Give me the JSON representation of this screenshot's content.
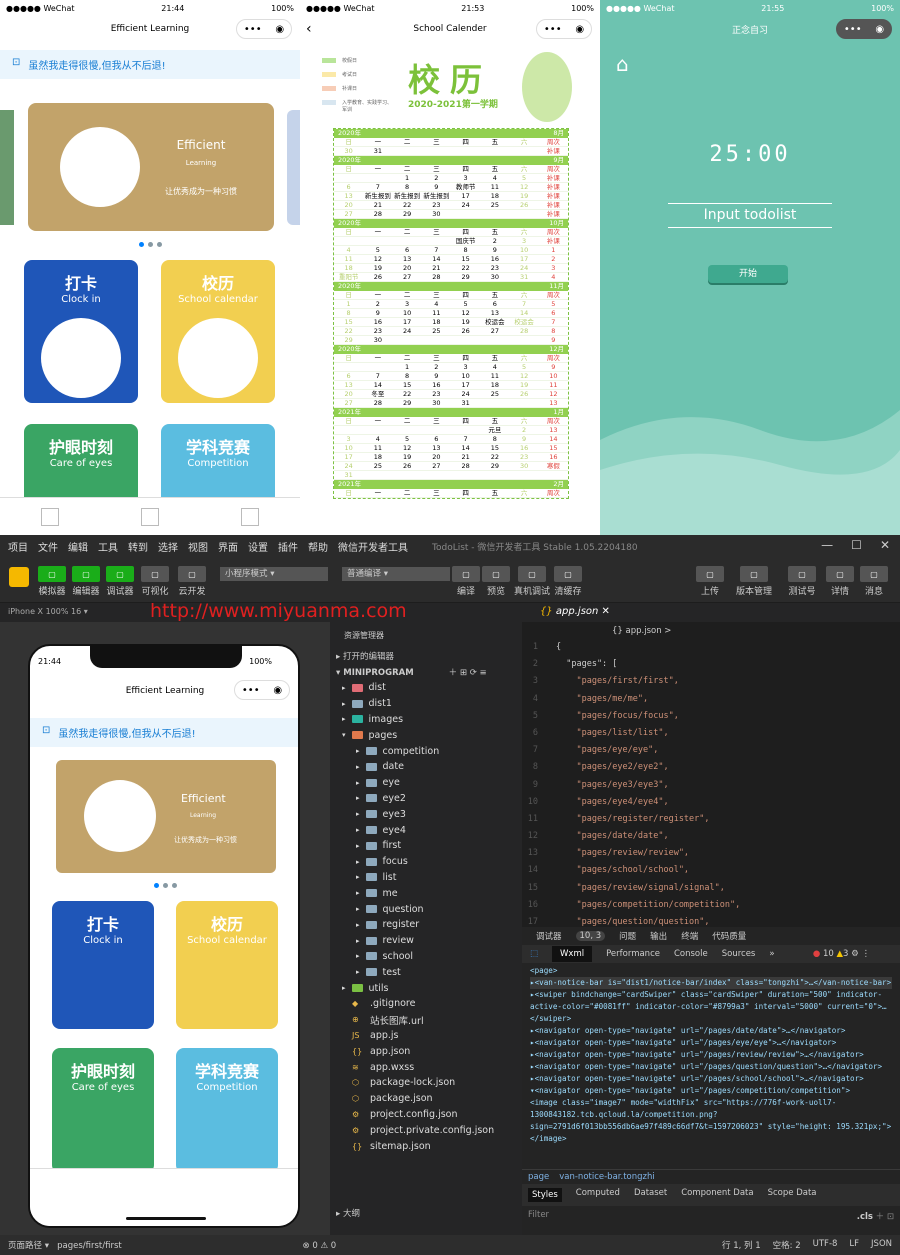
{
  "phone1": {
    "status": {
      "carrier": "●●●●● WeChat",
      "time": "21:44",
      "battery": "100%"
    },
    "title": "Efficient Learning",
    "notice": "虽然我走得很慢,但我从不后退!",
    "banner": {
      "title": "Efficient",
      "subtitle": "Learning",
      "slogan": "让优秀成为一种习惯"
    },
    "cards": [
      {
        "title": "打卡",
        "subtitle": "Clock in",
        "color": "#1f56b8"
      },
      {
        "title": "校历",
        "subtitle": "School calendar",
        "color": "#f2cf50"
      },
      {
        "title": "护眼时刻",
        "subtitle": "Care of eyes",
        "color": "#3aa564"
      },
      {
        "title": "学科竞赛",
        "subtitle": "Competition",
        "color": "#5bbde0"
      }
    ]
  },
  "phone2": {
    "status": {
      "carrier": "●●●●● WeChat",
      "time": "21:53",
      "battery": "100%"
    },
    "title": "School Calender",
    "heading": "校历",
    "term": "2020-2021第一学期",
    "legend": [
      "校假日",
      "考试日",
      "补课日",
      "入学教育、实践学习、军训"
    ],
    "weekdays": [
      "日",
      "一",
      "二",
      "三",
      "四",
      "五",
      "六",
      "周次"
    ],
    "months": [
      {
        "year": "2020年",
        "month": "8月",
        "rows": [
          [
            "30",
            "31",
            "",
            "",
            "",
            "",
            "",
            "补课"
          ]
        ]
      },
      {
        "year": "2020年",
        "month": "9月",
        "rows": [
          [
            "",
            "",
            "1",
            "2",
            "3",
            "4",
            "5",
            "补课"
          ],
          [
            "6",
            "7",
            "8",
            "9",
            "教师节",
            "11",
            "12",
            "补课"
          ],
          [
            "13",
            "新生报到",
            "新生报到",
            "新生报到",
            "17",
            "18",
            "19",
            "补课"
          ],
          [
            "20",
            "21",
            "22",
            "23",
            "24",
            "25",
            "26",
            "补课"
          ],
          [
            "27",
            "28",
            "29",
            "30",
            "",
            "",
            "",
            "补课"
          ]
        ]
      },
      {
        "year": "2020年",
        "month": "10月",
        "rows": [
          [
            "",
            "",
            "",
            "",
            "国庆节",
            "2",
            "3",
            "补课"
          ],
          [
            "4",
            "5",
            "6",
            "7",
            "8",
            "9",
            "10",
            "1"
          ],
          [
            "11",
            "12",
            "13",
            "14",
            "15",
            "16",
            "17",
            "2"
          ],
          [
            "18",
            "19",
            "20",
            "21",
            "22",
            "23",
            "24",
            "3"
          ],
          [
            "重阳节",
            "26",
            "27",
            "28",
            "29",
            "30",
            "31",
            "4"
          ]
        ]
      },
      {
        "year": "2020年",
        "month": "11月",
        "rows": [
          [
            "1",
            "2",
            "3",
            "4",
            "5",
            "6",
            "7",
            "5"
          ],
          [
            "8",
            "9",
            "10",
            "11",
            "12",
            "13",
            "14",
            "6"
          ],
          [
            "15",
            "16",
            "17",
            "18",
            "19",
            "校运会",
            "校运会",
            "7"
          ],
          [
            "22",
            "23",
            "24",
            "25",
            "26",
            "27",
            "28",
            "8"
          ],
          [
            "29",
            "30",
            "",
            "",
            "",
            "",
            "",
            "9"
          ]
        ]
      },
      {
        "year": "2020年",
        "month": "12月",
        "rows": [
          [
            "",
            "",
            "1",
            "2",
            "3",
            "4",
            "5",
            "9"
          ],
          [
            "6",
            "7",
            "8",
            "9",
            "10",
            "11",
            "12",
            "10"
          ],
          [
            "13",
            "14",
            "15",
            "16",
            "17",
            "18",
            "19",
            "11"
          ],
          [
            "20",
            "冬至",
            "22",
            "23",
            "24",
            "25",
            "26",
            "12"
          ],
          [
            "27",
            "28",
            "29",
            "30",
            "31",
            "",
            "",
            "13"
          ]
        ]
      },
      {
        "year": "2021年",
        "month": "1月",
        "rows": [
          [
            "",
            "",
            "",
            "",
            "",
            "元旦",
            "2",
            "13"
          ],
          [
            "3",
            "4",
            "5",
            "6",
            "7",
            "8",
            "9",
            "14"
          ],
          [
            "10",
            "11",
            "12",
            "13",
            "14",
            "15",
            "16",
            "15"
          ],
          [
            "17",
            "18",
            "19",
            "20",
            "21",
            "22",
            "23",
            "16"
          ],
          [
            "24",
            "25",
            "26",
            "27",
            "28",
            "29",
            "30",
            "寒假"
          ],
          [
            "31",
            "",
            "",
            "",
            "",
            "",
            "",
            ""
          ]
        ]
      },
      {
        "year": "2021年",
        "month": "2月",
        "rows": []
      }
    ]
  },
  "phone3": {
    "status": {
      "carrier": "●●●●● WeChat",
      "time": "21:55",
      "battery": "100%"
    },
    "title": "正念自习",
    "timer": "25:00",
    "input_placeholder": "Input todolist",
    "start": "开始"
  },
  "ide": {
    "menu": [
      "项目",
      "文件",
      "编辑",
      "工具",
      "转到",
      "选择",
      "视图",
      "界面",
      "设置",
      "插件",
      "帮助",
      "微信开发者工具"
    ],
    "window_title": "TodoList - 微信开发者工具 Stable 1.05.2204180",
    "toolbar_left": [
      "模拟器",
      "编辑器",
      "调试器",
      "可视化",
      "云开发"
    ],
    "mode": "小程序模式",
    "compile": "普通编译",
    "toolbar_mid": [
      "编译",
      "预览",
      "真机调试",
      "清缓存"
    ],
    "toolbar_right": [
      "上传",
      "版本管理",
      "测试号",
      "详情",
      "消息"
    ],
    "device": "iPhone X 100% 16 ▾",
    "watermark": "http://www.miyuanma.com",
    "explorer_title": "资源管理器",
    "open_editors": "打开的编辑器",
    "project": "MINIPROGRAM",
    "tree": [
      {
        "n": "dist",
        "d": 0,
        "c": "#e06c75"
      },
      {
        "n": "dist1",
        "d": 0
      },
      {
        "n": "images",
        "d": 0,
        "c": "#2bb3a0"
      },
      {
        "n": "pages",
        "d": 0,
        "c": "#e0794c",
        "open": true
      },
      {
        "n": "competition",
        "d": 1
      },
      {
        "n": "date",
        "d": 1
      },
      {
        "n": "eye",
        "d": 1
      },
      {
        "n": "eye2",
        "d": 1
      },
      {
        "n": "eye3",
        "d": 1
      },
      {
        "n": "eye4",
        "d": 1
      },
      {
        "n": "first",
        "d": 1
      },
      {
        "n": "focus",
        "d": 1
      },
      {
        "n": "list",
        "d": 1
      },
      {
        "n": "me",
        "d": 1
      },
      {
        "n": "question",
        "d": 1
      },
      {
        "n": "register",
        "d": 1
      },
      {
        "n": "review",
        "d": 1
      },
      {
        "n": "school",
        "d": 1
      },
      {
        "n": "test",
        "d": 1
      },
      {
        "n": "utils",
        "d": 0,
        "c": "#7bc043"
      },
      {
        "n": ".gitignore",
        "f": "◆"
      },
      {
        "n": "站长图库.url",
        "f": "⊕"
      },
      {
        "n": "app.js",
        "f": "JS"
      },
      {
        "n": "app.json",
        "f": "{}"
      },
      {
        "n": "app.wxss",
        "f": "≋"
      },
      {
        "n": "package-lock.json",
        "f": "⬡"
      },
      {
        "n": "package.json",
        "f": "⬡"
      },
      {
        "n": "project.config.json",
        "f": "⚙"
      },
      {
        "n": "project.private.config.json",
        "f": "⚙"
      },
      {
        "n": "sitemap.json",
        "f": "{}"
      }
    ],
    "outline": "大纲",
    "problems": "⊗ 0 ⚠ 0",
    "tab": "app.json",
    "breadcrumb": "{} app.json >",
    "code": [
      "{",
      "  \"pages\": [",
      "    \"pages/first/first\",",
      "    \"pages/me/me\",",
      "    \"pages/focus/focus\",",
      "    \"pages/list/list\",",
      "    \"pages/eye/eye\",",
      "    \"pages/eye2/eye2\",",
      "    \"pages/eye3/eye3\",",
      "    \"pages/eye4/eye4\",",
      "    \"pages/register/register\",",
      "    \"pages/date/date\",",
      "    \"pages/review/review\",",
      "    \"pages/school/school\",",
      "    \"pages/review/signal/signal\",",
      "    \"pages/competition/competition\",",
      "    \"pages/question/question\","
    ],
    "debug_tabs": [
      "调试器",
      "10, 3",
      "问题",
      "输出",
      "终端",
      "代码质量"
    ],
    "dev_tabs": [
      "Wxml",
      "Performance",
      "Console",
      "Sources",
      "»"
    ],
    "errors": "10",
    "warnings": "3",
    "wxml": [
      "<page>",
      "▸<van-notice-bar is=\"dist1/notice-bar/index\" class=\"tongzhi\">…</van-notice-bar>",
      "▸<swiper bindchange=\"cardSwiper\" class=\"cardSwiper\" duration=\"500\" indicator-active-color=\"#0081ff\" indicator-color=\"#8799a3\" interval=\"5000\" current=\"0\">…</swiper>",
      "▸<navigator open-type=\"navigate\" url=\"/pages/date/date\">…</navigator>",
      "▸<navigator open-type=\"navigate\" url=\"/pages/eye/eye\">…</navigator>",
      "▸<navigator open-type=\"navigate\" url=\"/pages/review/review\">…</navigator>",
      "▸<navigator open-type=\"navigate\" url=\"/pages/question/question\">…</navigator>",
      "▸<navigator open-type=\"navigate\" url=\"/pages/school/school\">…</navigator>",
      "▾<navigator open-type=\"navigate\" url=\"/pages/competition/competition\">",
      "   <image class=\"image7\" mode=\"widthFix\" src=\"https://776f-work-uoll7-1300843182.tcb.qcloud.la/competition.png?sign=2791d6f013bb556db6ae97f489c66df7&t=1597206023\" style=\"height: 195.321px;\"></image>"
    ],
    "dom_path": [
      "page",
      "van-notice-bar.tongzhi"
    ],
    "style_tabs": [
      "Styles",
      "Computed",
      "Dataset",
      "Component Data",
      "Scope Data"
    ],
    "filter": "Filter",
    "cls": ".cls",
    "statusbar_left": [
      "页面路径 ▾",
      "pages/first/first"
    ],
    "statusbar_right": [
      "行 1, 列 1",
      "空格: 2",
      "UTF-8",
      "LF",
      "JSON"
    ]
  }
}
